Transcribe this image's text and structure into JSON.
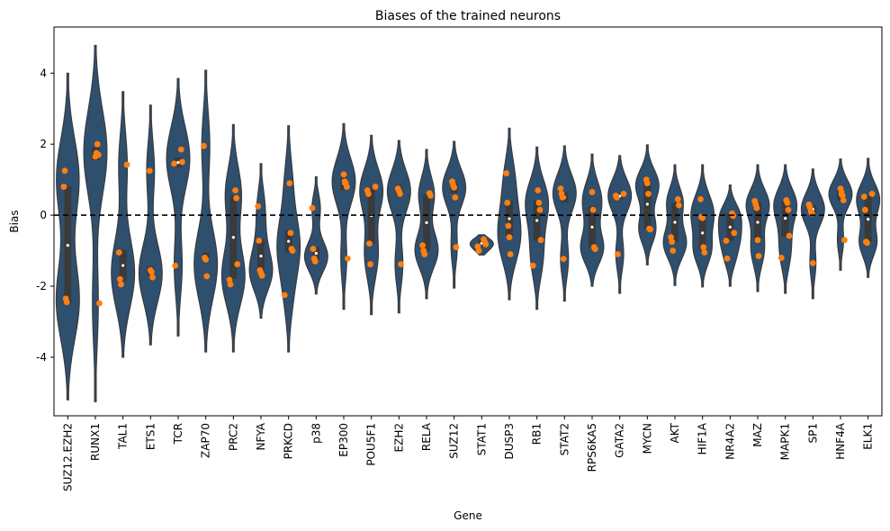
{
  "chart_data": {
    "type": "violin",
    "title": "Biases of the trained neurons",
    "xlabel": "Gene",
    "ylabel": "Bias",
    "ylim": [
      -5.65,
      5.3
    ],
    "yticks": [
      -4,
      -2,
      0,
      2,
      4
    ],
    "reference_line": {
      "y": 0,
      "style": "dashed",
      "color": "#000000"
    },
    "colors": {
      "violin": "#2f4f6f",
      "box": "#3a3a3a",
      "points": "#ff7f0e",
      "outline": "#3a3a3a"
    },
    "categories": [
      "SUZ12.EZH2",
      "RUNX1",
      "TAL1",
      "ETS1",
      "TCR",
      "ZAP70",
      "PRC2",
      "NFYA",
      "PRKCD",
      "p38",
      "EP300",
      "POU5F1",
      "EZH2",
      "RELA",
      "SUZ12",
      "STAT1",
      "DUSP3",
      "RB1",
      "STAT2",
      "RPS6KA5",
      "GATA2",
      "MYCN",
      "AKT",
      "HIF1A",
      "NR4A2",
      "MAZ",
      "MAPK1",
      "SP1",
      "HNF4A",
      "ELK1"
    ],
    "points": [
      [
        0.8,
        1.25,
        -2.35,
        -2.45
      ],
      [
        1.65,
        1.75,
        2.0,
        1.7,
        -2.48
      ],
      [
        1.42,
        -1.05,
        -1.8,
        -1.95
      ],
      [
        1.25,
        -1.55,
        -1.6,
        -1.75
      ],
      [
        1.85,
        1.5,
        1.45,
        -1.42
      ],
      [
        1.95,
        -1.2,
        -1.25,
        -1.72
      ],
      [
        0.7,
        0.48,
        -1.38,
        -1.82,
        -1.95
      ],
      [
        0.25,
        -0.72,
        -1.55,
        -1.62,
        -1.7
      ],
      [
        0.9,
        -0.5,
        -0.95,
        -1.0,
        -2.25
      ],
      [
        0.2,
        -0.95,
        -1.22,
        -1.3
      ],
      [
        1.15,
        0.95,
        0.9,
        0.8,
        -1.22
      ],
      [
        0.8,
        0.7,
        0.6,
        -0.8,
        -1.38
      ],
      [
        0.75,
        0.68,
        0.6,
        -1.38
      ],
      [
        0.62,
        0.55,
        -0.85,
        -1.0,
        -1.1
      ],
      [
        0.95,
        0.85,
        0.78,
        0.5,
        -0.9
      ],
      [
        -0.68,
        -0.75,
        -0.82,
        -0.88,
        -1.0
      ],
      [
        1.18,
        0.35,
        -0.3,
        -0.62,
        -1.1
      ],
      [
        0.7,
        0.35,
        0.15,
        -0.7,
        -1.42
      ],
      [
        0.75,
        0.6,
        0.5,
        -1.23
      ],
      [
        0.65,
        0.15,
        -0.9,
        -0.95
      ],
      [
        0.6,
        0.55,
        0.5,
        -1.1
      ],
      [
        1.0,
        0.9,
        0.6,
        -0.38,
        -0.4
      ],
      [
        0.45,
        0.28,
        -0.62,
        -0.75,
        -1.0
      ],
      [
        0.45,
        -0.05,
        -0.08,
        -0.9,
        -1.05
      ],
      [
        0.05,
        -0.02,
        -0.5,
        -0.72,
        -1.22
      ],
      [
        0.4,
        0.3,
        0.2,
        -0.7,
        -1.15
      ],
      [
        0.42,
        0.35,
        0.15,
        -0.58,
        -1.2
      ],
      [
        0.3,
        0.22,
        0.1,
        0.05,
        -1.35
      ],
      [
        0.75,
        0.65,
        0.55,
        0.42,
        -0.7
      ],
      [
        0.6,
        0.52,
        0.15,
        -0.75,
        -0.78
      ]
    ],
    "violin_range": [
      [
        -5.2,
        4.0
      ],
      [
        -5.25,
        4.78
      ],
      [
        -4.0,
        3.48
      ],
      [
        -3.65,
        3.1
      ],
      [
        -3.4,
        3.85
      ],
      [
        -3.85,
        4.08
      ],
      [
        -3.85,
        2.55
      ],
      [
        -2.9,
        1.45
      ],
      [
        -3.85,
        2.52
      ],
      [
        -2.22,
        1.08
      ],
      [
        -2.65,
        2.58
      ],
      [
        -2.8,
        2.25
      ],
      [
        -2.75,
        2.1
      ],
      [
        -2.35,
        1.85
      ],
      [
        -2.05,
        2.08
      ],
      [
        -1.12,
        -0.55
      ],
      [
        -2.38,
        2.45
      ],
      [
        -2.65,
        1.92
      ],
      [
        -2.42,
        1.95
      ],
      [
        -2.0,
        1.72
      ],
      [
        -2.2,
        1.68
      ],
      [
        -1.4,
        1.98
      ],
      [
        -1.98,
        1.42
      ],
      [
        -2.02,
        1.42
      ],
      [
        -2.0,
        0.85
      ],
      [
        -2.15,
        1.42
      ],
      [
        -2.2,
        1.42
      ],
      [
        -2.35,
        1.3
      ],
      [
        -1.55,
        1.58
      ],
      [
        -1.75,
        1.6
      ]
    ],
    "box": [
      [
        -2.5,
        0.8
      ],
      [
        1.55,
        1.9
      ],
      [
        -1.85,
        -0.98
      ],
      [
        -1.7,
        -1.45
      ],
      [
        1.35,
        1.62
      ],
      [
        -1.28,
        -1.05
      ],
      [
        -1.8,
        0.55
      ],
      [
        -1.62,
        -0.68
      ],
      [
        -1.05,
        -0.42
      ],
      [
        -1.25,
        -0.9
      ],
      [
        0.72,
        1.05
      ],
      [
        -0.8,
        0.78
      ],
      [
        0.55,
        0.85
      ],
      [
        -1.0,
        0.58
      ],
      [
        0.62,
        0.9
      ],
      [
        -0.88,
        -0.7
      ],
      [
        -0.6,
        0.4
      ],
      [
        -0.72,
        0.42
      ],
      [
        0.35,
        0.65
      ],
      [
        -0.92,
        0.25
      ],
      [
        0.45,
        0.62
      ],
      [
        -0.38,
        1.0
      ],
      [
        -0.75,
        0.35
      ],
      [
        -0.95,
        -0.05
      ],
      [
        -0.72,
        0.05
      ],
      [
        -0.75,
        0.35
      ],
      [
        -0.6,
        0.42
      ],
      [
        0.05,
        0.28
      ],
      [
        0.42,
        0.72
      ],
      [
        -0.78,
        0.55
      ]
    ]
  }
}
